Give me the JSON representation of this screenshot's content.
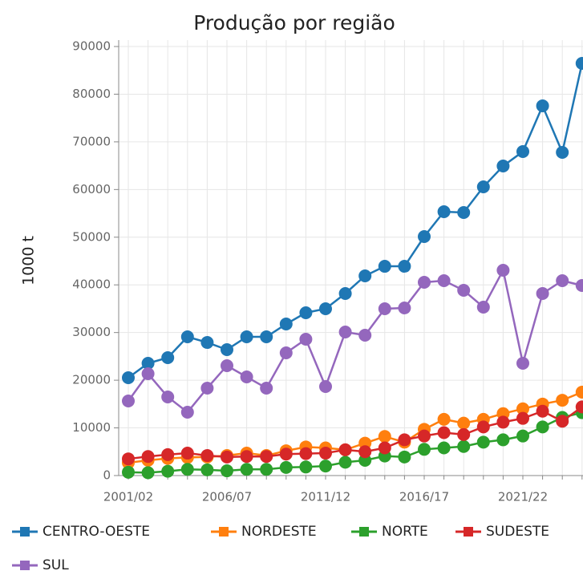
{
  "chart_data": {
    "type": "line",
    "title": "Produção por região",
    "y_label": "1000 t",
    "categories": [
      "2001/02",
      null,
      null,
      null,
      null,
      "2006/07",
      null,
      null,
      null,
      null,
      "2011/12",
      null,
      null,
      null,
      null,
      "2016/17",
      null,
      null,
      null,
      null,
      "2021/22",
      null,
      null,
      null
    ],
    "series": [
      {
        "name": "CENTRO-OESTE",
        "color": "#1f77b4",
        "values": [
          20520,
          23550,
          24730,
          29100,
          27920,
          26410,
          29100,
          29100,
          31790,
          34150,
          34990,
          38190,
          41890,
          43900,
          43900,
          50130,
          55350,
          55180,
          60560,
          64930,
          67960,
          77550,
          67790,
          86470
        ]
      },
      {
        "name": "NORDESTE",
        "color": "#ff7f0e",
        "values": [
          2700,
          3200,
          3600,
          3800,
          3900,
          4200,
          4700,
          4200,
          5200,
          6000,
          5800,
          5400,
          6800,
          8200,
          7000,
          9700,
          11800,
          11000,
          11800,
          13000,
          14000,
          15000,
          15800,
          17500
        ]
      },
      {
        "name": "NORTE",
        "color": "#2ca02c",
        "values": [
          700,
          600,
          900,
          1300,
          1200,
          1000,
          1300,
          1300,
          1700,
          1800,
          2000,
          2800,
          3200,
          4100,
          3900,
          5500,
          5800,
          6100,
          7000,
          7500,
          8300,
          10200,
          12200,
          13200
        ]
      },
      {
        "name": "SUDESTE",
        "color": "#d62728",
        "values": [
          3500,
          4000,
          4400,
          4700,
          4200,
          3900,
          4000,
          4000,
          4500,
          4600,
          4700,
          5400,
          5000,
          5800,
          7500,
          8300,
          9000,
          8600,
          10200,
          11200,
          12000,
          13500,
          11400,
          14400
        ]
      },
      {
        "name": "SUL",
        "color": "#9467bd",
        "values": [
          15650,
          21360,
          16490,
          13290,
          18340,
          23050,
          20690,
          18340,
          25740,
          28600,
          18670,
          30110,
          29440,
          34990,
          35160,
          40540,
          40880,
          38860,
          35330,
          43070,
          23550,
          38190,
          40880,
          39870
        ]
      }
    ],
    "ylim": [
      0,
      90000
    ],
    "yticks": [
      0,
      10000,
      20000,
      30000,
      40000,
      50000,
      60000,
      70000,
      80000,
      90000
    ],
    "grid": true
  }
}
